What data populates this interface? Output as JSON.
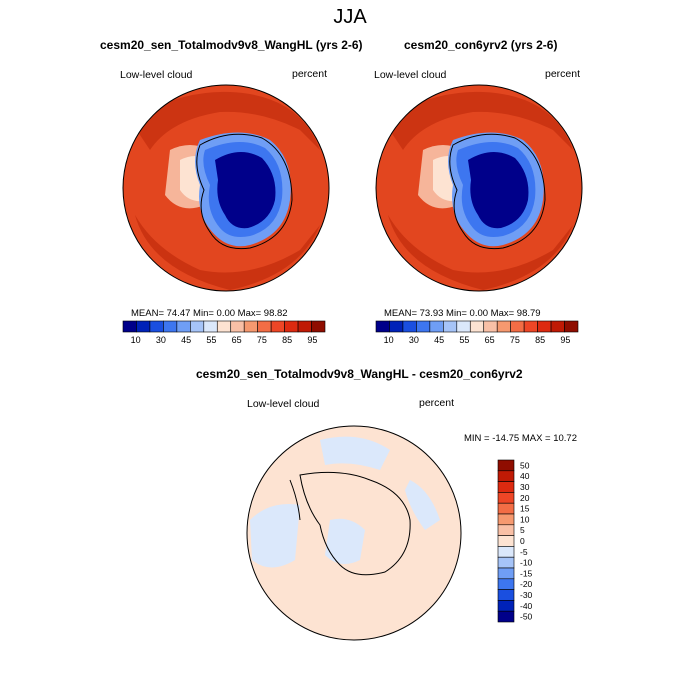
{
  "figure_title": "JJA",
  "panels": {
    "sen": {
      "title": "cesm20_sen_Totalmodv9v8_WangHL (yrs 2-6)",
      "variable": "Low-level cloud",
      "units": "percent",
      "stats": "MEAN=  74.47  Min=   0.00  Max=  98.82"
    },
    "con": {
      "title": "cesm20_con6yrv2 (yrs 2-6)",
      "variable": "Low-level cloud",
      "units": "percent",
      "stats": "MEAN=  73.93  Min=   0.00  Max=  98.79"
    },
    "diff": {
      "title": "cesm20_sen_Totalmodv9v8_WangHL - cesm20_con6yrv2",
      "variable": "Low-level cloud",
      "units": "percent",
      "stats": "MIN = -14.75 MAX =  10.72"
    }
  },
  "colorbars": {
    "field": {
      "labels": [
        "10",
        "30",
        "45",
        "55",
        "65",
        "75",
        "85",
        "95"
      ],
      "colors": [
        "#00008a",
        "#0022b8",
        "#1a4fe0",
        "#3d76f0",
        "#6f9ef5",
        "#a6c4f8",
        "#dbe8fb",
        "#fde3d2",
        "#f9c0a6",
        "#f6996f",
        "#f36d45",
        "#ee4626",
        "#dd2a10",
        "#c01a05",
        "#8f0d00"
      ]
    },
    "diff": {
      "labels": [
        "50",
        "40",
        "30",
        "20",
        "15",
        "10",
        "5",
        "0",
        "-5",
        "-10",
        "-15",
        "-20",
        "-30",
        "-40",
        "-50"
      ],
      "colors": [
        "#8f0d00",
        "#c01a05",
        "#dd2a10",
        "#ee4626",
        "#f36d45",
        "#f6996f",
        "#f9c0a6",
        "#fde3d2",
        "#dbe8fb",
        "#a6c4f8",
        "#6f9ef5",
        "#3d76f0",
        "#1a4fe0",
        "#0022b8",
        "#00008a"
      ]
    }
  }
}
